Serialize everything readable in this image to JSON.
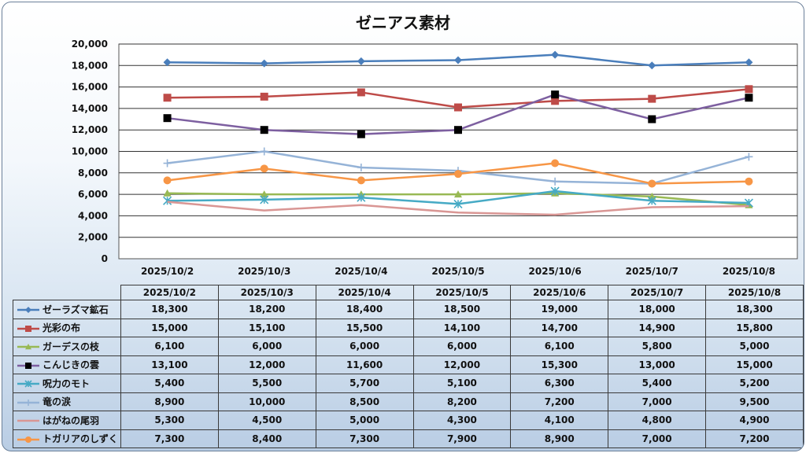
{
  "chart_data": {
    "type": "line",
    "title": "ゼニアス素材",
    "categories": [
      "2025/10/2",
      "2025/10/3",
      "2025/10/4",
      "2025/10/5",
      "2025/10/6",
      "2025/10/7",
      "2025/10/8"
    ],
    "ylim": [
      0,
      20000
    ],
    "yticks": [
      "0",
      "2,000",
      "4,000",
      "6,000",
      "8,000",
      "10,000",
      "12,000",
      "14,000",
      "16,000",
      "18,000",
      "20,000"
    ],
    "grid": true,
    "legend": "data-table",
    "series": [
      {
        "name": "ゼーラズマ鉱石",
        "color": "#4a7ebb",
        "marker": "diamond",
        "values": [
          18300,
          18200,
          18400,
          18500,
          19000,
          18000,
          18300
        ],
        "labels": [
          "18,300",
          "18,200",
          "18,400",
          "18,500",
          "19,000",
          "18,000",
          "18,300"
        ]
      },
      {
        "name": "光彩の布",
        "color": "#be4b48",
        "marker": "square",
        "values": [
          15000,
          15100,
          15500,
          14100,
          14700,
          14900,
          15800
        ],
        "labels": [
          "15,000",
          "15,100",
          "15,500",
          "14,100",
          "14,700",
          "14,900",
          "15,800"
        ]
      },
      {
        "name": "ガーデスの枝",
        "color": "#98b954",
        "marker": "triangle",
        "values": [
          6100,
          6000,
          6000,
          6000,
          6100,
          5800,
          5000
        ],
        "labels": [
          "6,100",
          "6,000",
          "6,000",
          "6,000",
          "6,100",
          "5,800",
          "5,000"
        ]
      },
      {
        "name": "こんじきの雲",
        "color": "#7d5fa0",
        "marker": "blacksquare",
        "values": [
          13100,
          12000,
          11600,
          12000,
          15300,
          13000,
          15000
        ],
        "labels": [
          "13,100",
          "12,000",
          "11,600",
          "12,000",
          "15,300",
          "13,000",
          "15,000"
        ]
      },
      {
        "name": "呪力のモト",
        "color": "#46aac5",
        "marker": "star",
        "values": [
          5400,
          5500,
          5700,
          5100,
          6300,
          5400,
          5200
        ],
        "labels": [
          "5,400",
          "5,500",
          "5,700",
          "5,100",
          "6,300",
          "5,400",
          "5,200"
        ]
      },
      {
        "name": "竜の涙",
        "color": "#95b3d7",
        "marker": "plus",
        "values": [
          8900,
          10000,
          8500,
          8200,
          7200,
          7000,
          9500
        ],
        "labels": [
          "8,900",
          "10,000",
          "8,500",
          "8,200",
          "7,200",
          "7,000",
          "9,500"
        ]
      },
      {
        "name": "はがねの尾羽",
        "color": "#d99694",
        "marker": "none",
        "values": [
          5300,
          4500,
          5000,
          4300,
          4100,
          4800,
          4900
        ],
        "labels": [
          "5,300",
          "4,500",
          "5,000",
          "4,300",
          "4,100",
          "4,800",
          "4,900"
        ]
      },
      {
        "name": "トガリアのしずく",
        "color": "#f79646",
        "marker": "circle",
        "values": [
          7300,
          8400,
          7300,
          7900,
          8900,
          7000,
          7200
        ],
        "labels": [
          "7,300",
          "8,400",
          "7,300",
          "7,900",
          "8,900",
          "7,000",
          "7,200"
        ]
      }
    ]
  }
}
